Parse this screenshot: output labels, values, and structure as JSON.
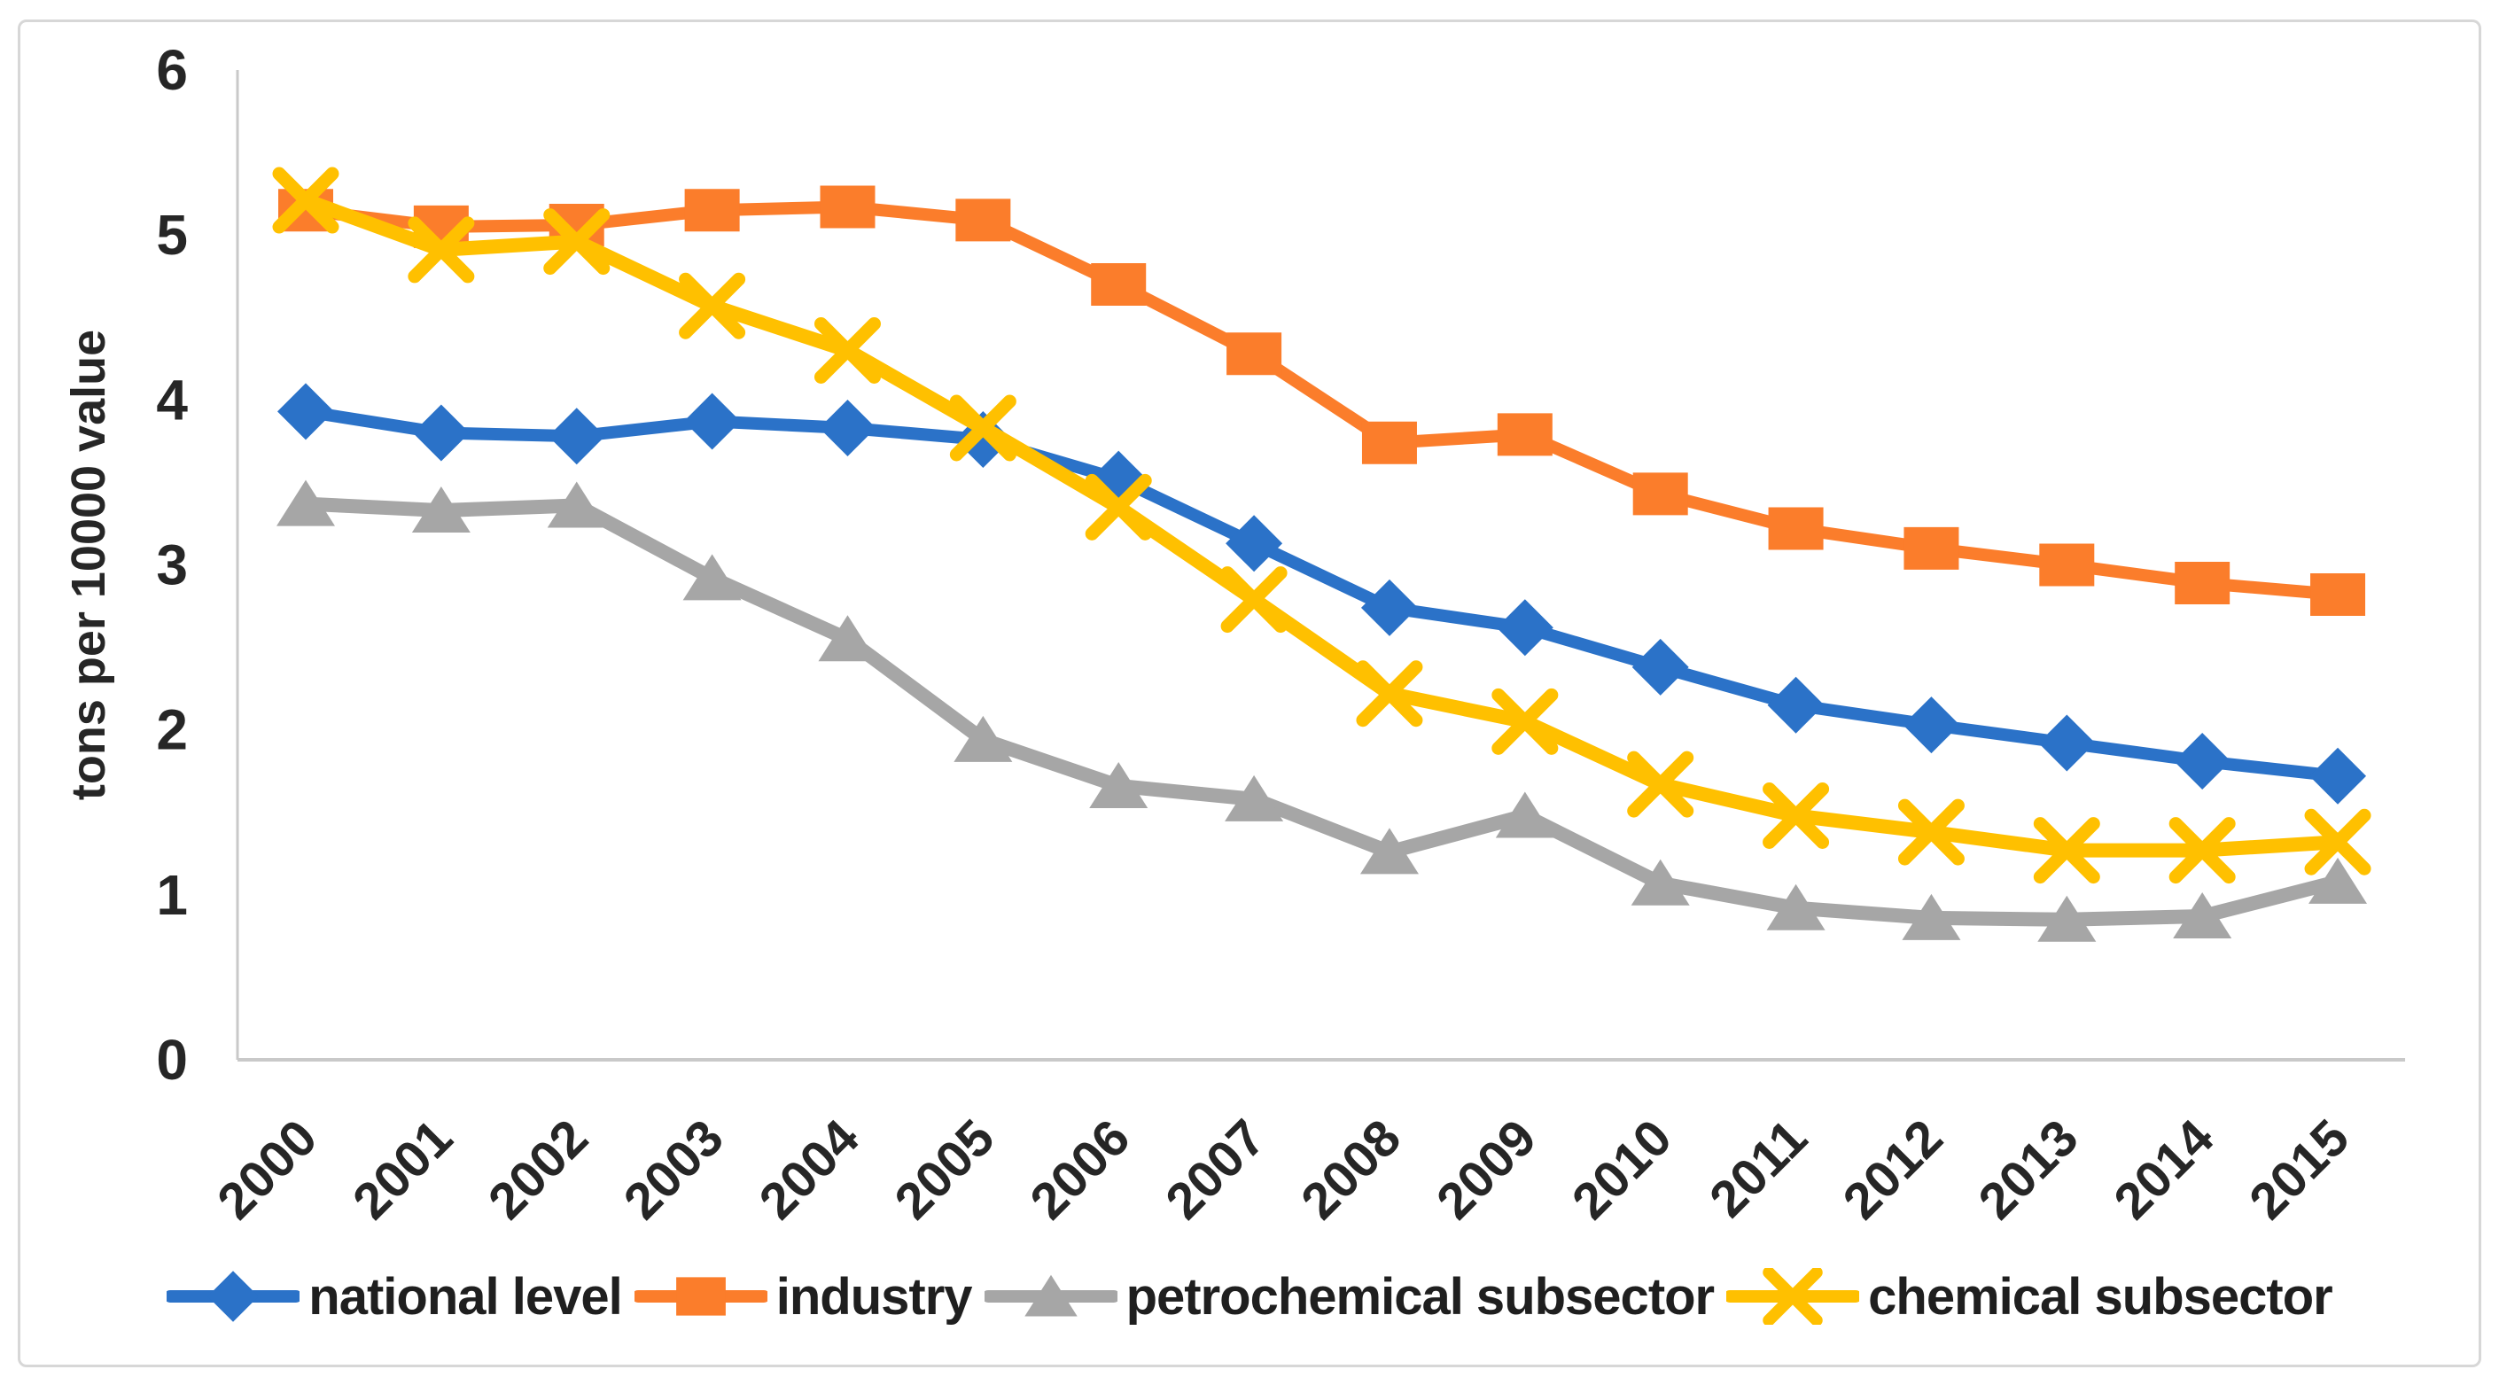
{
  "figure": {
    "background": "#ffffff",
    "border_color": "#d7d7d7"
  },
  "chart_data": {
    "type": "line",
    "title": "",
    "xlabel": "",
    "ylabel": "tons per 10000 value",
    "ylim": [
      0,
      6
    ],
    "yticks": [
      0,
      1,
      2,
      3,
      4,
      5,
      6
    ],
    "grid": false,
    "legend_position": "bottom",
    "axis_color": "#c9c9c9",
    "text_color": "#262626",
    "categories": [
      "2000",
      "2001",
      "2002",
      "2003",
      "2004",
      "2005",
      "2006",
      "2007",
      "2008",
      "2009",
      "2010",
      "2011",
      "2012",
      "2013",
      "2014",
      "2015"
    ],
    "series": [
      {
        "name": "national level",
        "color": "#2b72c8",
        "marker": "diamond",
        "line_width": 14,
        "values": [
          3.93,
          3.8,
          3.78,
          3.87,
          3.83,
          3.76,
          3.52,
          3.13,
          2.74,
          2.62,
          2.38,
          2.15,
          2.03,
          1.92,
          1.81,
          1.72
        ]
      },
      {
        "name": "industry",
        "color": "#fb7d2b",
        "marker": "square",
        "line_width": 14,
        "values": [
          5.15,
          5.05,
          5.06,
          5.15,
          5.17,
          5.09,
          4.7,
          4.28,
          3.74,
          3.79,
          3.43,
          3.22,
          3.1,
          3.0,
          2.89,
          2.82
        ]
      },
      {
        "name": "petrochemical subsector",
        "color": "#a6a6a6",
        "marker": "triangle",
        "line_width": 16,
        "values": [
          3.37,
          3.33,
          3.36,
          2.92,
          2.55,
          1.94,
          1.66,
          1.58,
          1.26,
          1.48,
          1.07,
          0.92,
          0.86,
          0.85,
          0.87,
          1.08
        ]
      },
      {
        "name": "chemical subsector",
        "color": "#ffc000",
        "marker": "x",
        "line_width": 16,
        "values": [
          5.21,
          4.91,
          4.96,
          4.57,
          4.3,
          3.83,
          3.35,
          2.79,
          2.22,
          2.05,
          1.67,
          1.48,
          1.38,
          1.27,
          1.27,
          1.32
        ]
      }
    ]
  }
}
